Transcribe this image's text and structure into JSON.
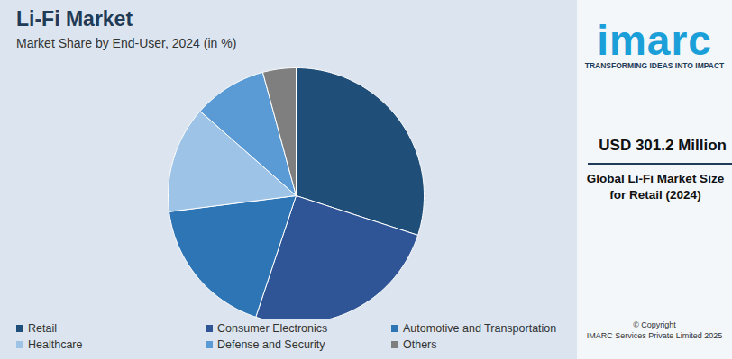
{
  "chart_data": {
    "type": "pie",
    "title": "Li-Fi Market",
    "subtitle": "Market Share by End-User, 2024 (in %)",
    "categories": [
      "Retail",
      "Consumer Electronics",
      "Automotive and Transportation",
      "Healthcare",
      "Defense and Security",
      "Others"
    ],
    "values": [
      30.0,
      25.1,
      17.9,
      13.5,
      9.3,
      4.2
    ],
    "colors": [
      "#1f4e79",
      "#2f5597",
      "#2e75b6",
      "#9dc3e6",
      "#5b9bd5",
      "#7f7f7f"
    ],
    "legend": "bottom",
    "data_labels": false,
    "annotations": [
      "imarc",
      "TRANSFORMING IDEAS INTO IMPACT",
      "USD 301.2 Million",
      "Global Li-Fi Market Size for Retail (2024)",
      "© Copyright",
      "IMARC Services Private Limited 2025"
    ]
  }
}
